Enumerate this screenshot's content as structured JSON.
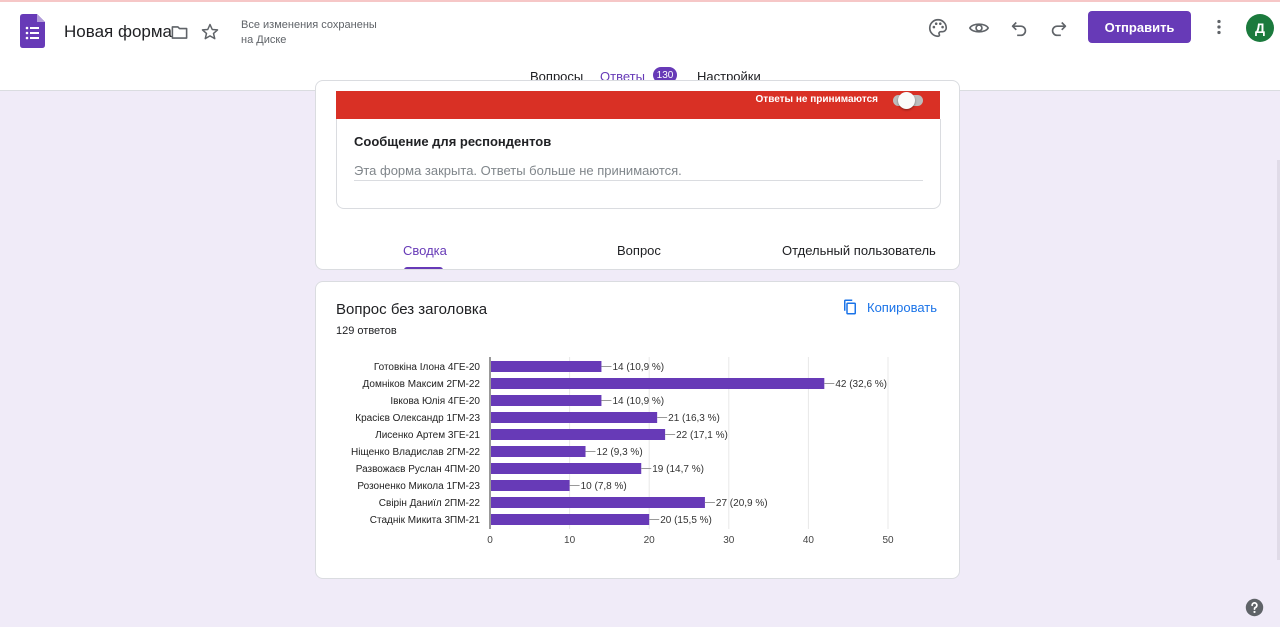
{
  "header": {
    "title": "Новая форма",
    "save_status": "Все изменения сохранены на Диске",
    "send_label": "Отправить",
    "avatar_letter": "Д",
    "icons": [
      "forms-logo-icon",
      "folder-icon",
      "star-icon",
      "palette-icon",
      "eye-icon",
      "undo-icon",
      "redo-icon",
      "more-vert-icon"
    ]
  },
  "tabs": {
    "questions": "Вопросы",
    "responses": "Ответы",
    "responses_count": "130",
    "settings": "Настройки"
  },
  "responses_panel": {
    "not_accepting_label": "Ответы не принимаются",
    "message_title": "Сообщение для респондентов",
    "message_text": "Эта форма закрыта. Ответы больше не принимаются.",
    "view_tabs": {
      "summary": "Сводка",
      "question": "Вопрос",
      "individual": "Отдельный пользователь"
    }
  },
  "question_card": {
    "title": "Вопрос без заголовка",
    "count_text": "129 ответов",
    "copy_label": "Копировать"
  },
  "chart_data": {
    "type": "bar",
    "orientation": "horizontal",
    "categories": [
      "Готовкіна Ілона 4ГЕ-20",
      "Домніков Максим 2ГМ-22",
      "Івкова Юлія 4ГЕ-20",
      "Красієв Олександр 1ГМ-23",
      "Лисенко Артем 3ГЕ-21",
      "Ніщенко Владислав 2ГМ-22",
      "Развожаєв Руслан 4ПМ-20",
      "Розоненко Микола 1ГМ-23",
      "Свірін Даниїл 2ПМ-22",
      "Стаднік Микита 3ПМ-21"
    ],
    "values": [
      14,
      42,
      14,
      21,
      22,
      12,
      19,
      10,
      27,
      20
    ],
    "data_labels": [
      "14 (10,9 %)",
      "42 (32,6 %)",
      "14 (10,9 %)",
      "21 (16,3 %)",
      "22 (17,1 %)",
      "12 (9,3 %)",
      "19 (14,7 %)",
      "10 (7,8 %)",
      "27 (20,9 %)",
      "20 (15,5 %)"
    ],
    "xlim": [
      0,
      50
    ],
    "xticks": [
      "0",
      "10",
      "20",
      "30",
      "40",
      "50"
    ],
    "grid": true,
    "bar_color": "#673ab7"
  },
  "colors": {
    "accent": "#673ab7",
    "closed_banner": "#d93025",
    "page_bg": "#f0ebf8",
    "link": "#1a73e8"
  }
}
